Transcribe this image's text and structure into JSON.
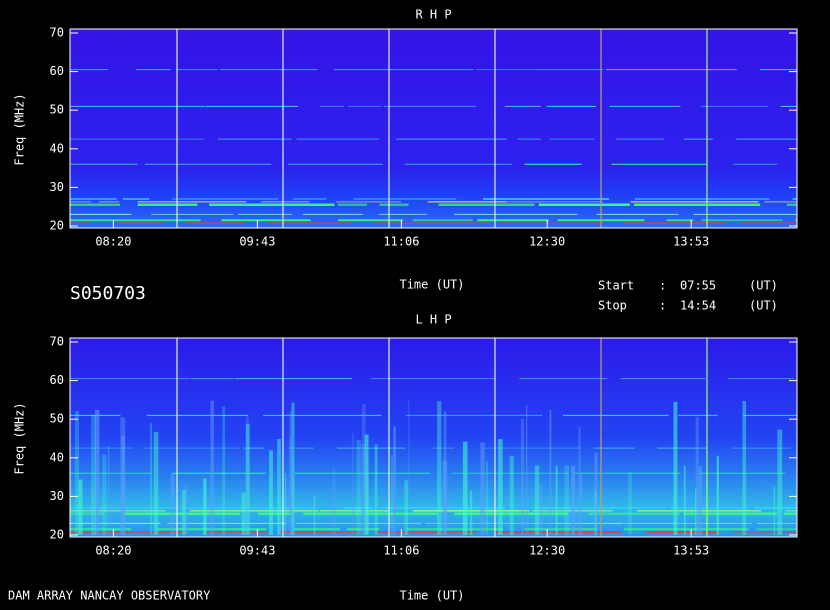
{
  "chart_data": [
    {
      "type": "spectrogram",
      "title": "R H P",
      "ylabel": "Freq (MHz)",
      "xlabel": "Time (UT)",
      "ylim": [
        20,
        70
      ],
      "yticks": [
        20,
        30,
        40,
        50,
        60,
        70
      ],
      "xticks": [
        "08:20",
        "09:43",
        "11:06",
        "12:30",
        "13:53"
      ]
    },
    {
      "type": "spectrogram",
      "title": "L H P",
      "ylabel": "Freq (MHz)",
      "xlabel": "Time (UT)",
      "ylim": [
        20,
        70
      ],
      "yticks": [
        20,
        30,
        40,
        50,
        60,
        70
      ],
      "xticks": [
        "08:20",
        "09:43",
        "11:06",
        "12:30",
        "13:53"
      ]
    }
  ],
  "observation": {
    "id": "S050703",
    "start_label": "Start",
    "start_sep": ":",
    "start": "07:55",
    "start_unit": "(UT)",
    "stop_label": "Stop",
    "stop_sep": ":",
    "stop": "14:54",
    "stop_unit": "(UT)"
  },
  "footer": "DAM ARRAY  NANCAY OBSERVATORY"
}
